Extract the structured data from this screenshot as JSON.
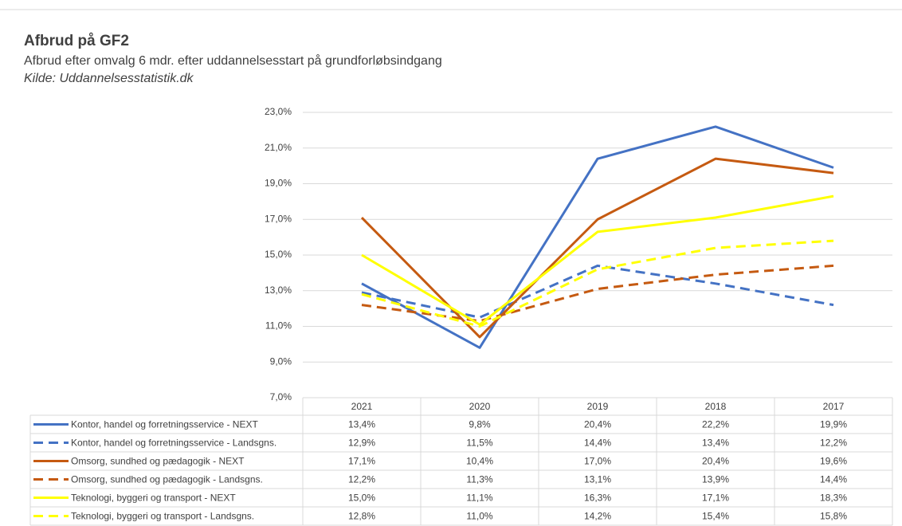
{
  "chart_data": {
    "type": "line",
    "title": "Afbrud på GF2",
    "subtitle": "Afbrud efter omvalg 6 mdr. efter uddannelsesstart på grundforløbsindgang",
    "source": "Kilde: Uddannelsesstatistik.dk",
    "categories": [
      "2021",
      "2020",
      "2019",
      "2018",
      "2017"
    ],
    "ylim": [
      7,
      23
    ],
    "yticks": [
      {
        "value": 7,
        "label": "7,0%"
      },
      {
        "value": 9,
        "label": "9,0%"
      },
      {
        "value": 11,
        "label": "11,0%"
      },
      {
        "value": 13,
        "label": "13,0%"
      },
      {
        "value": 15,
        "label": "15,0%"
      },
      {
        "value": 17,
        "label": "17,0%"
      },
      {
        "value": 19,
        "label": "19,0%"
      },
      {
        "value": 21,
        "label": "21,0%"
      },
      {
        "value": 23,
        "label": "23,0%"
      }
    ],
    "grid": true,
    "series": [
      {
        "name": "Kontor, handel og forretningsservice - NEXT",
        "color": "#4472c4",
        "dashed": false,
        "values": [
          13.4,
          9.8,
          20.4,
          22.2,
          19.9
        ],
        "value_labels": [
          "13,4%",
          "9,8%",
          "20,4%",
          "22,2%",
          "19,9%"
        ]
      },
      {
        "name": "Kontor, handel og forretningsservice - Landsgns.",
        "color": "#4472c4",
        "dashed": true,
        "values": [
          12.9,
          11.5,
          14.4,
          13.4,
          12.2
        ],
        "value_labels": [
          "12,9%",
          "11,5%",
          "14,4%",
          "13,4%",
          "12,2%"
        ]
      },
      {
        "name": "Omsorg, sundhed og pædagogik - NEXT",
        "color": "#c55a11",
        "dashed": false,
        "values": [
          17.1,
          10.4,
          17.0,
          20.4,
          19.6
        ],
        "value_labels": [
          "17,1%",
          "10,4%",
          "17,0%",
          "20,4%",
          "19,6%"
        ]
      },
      {
        "name": "Omsorg, sundhed og pædagogik - Landsgns.",
        "color": "#c55a11",
        "dashed": true,
        "values": [
          12.2,
          11.3,
          13.1,
          13.9,
          14.4
        ],
        "value_labels": [
          "12,2%",
          "11,3%",
          "13,1%",
          "13,9%",
          "14,4%"
        ]
      },
      {
        "name": "Teknologi, byggeri og transport - NEXT",
        "color": "#ffff00",
        "dashed": false,
        "values": [
          15.0,
          11.1,
          16.3,
          17.1,
          18.3
        ],
        "value_labels": [
          "15,0%",
          "11,1%",
          "16,3%",
          "17,1%",
          "18,3%"
        ]
      },
      {
        "name": "Teknologi, byggeri og transport - Landsgns.",
        "color": "#ffff00",
        "dashed": true,
        "values": [
          12.8,
          11.0,
          14.2,
          15.4,
          15.8
        ],
        "value_labels": [
          "12,8%",
          "11,0%",
          "14,2%",
          "15,4%",
          "15,8%"
        ]
      }
    ]
  }
}
